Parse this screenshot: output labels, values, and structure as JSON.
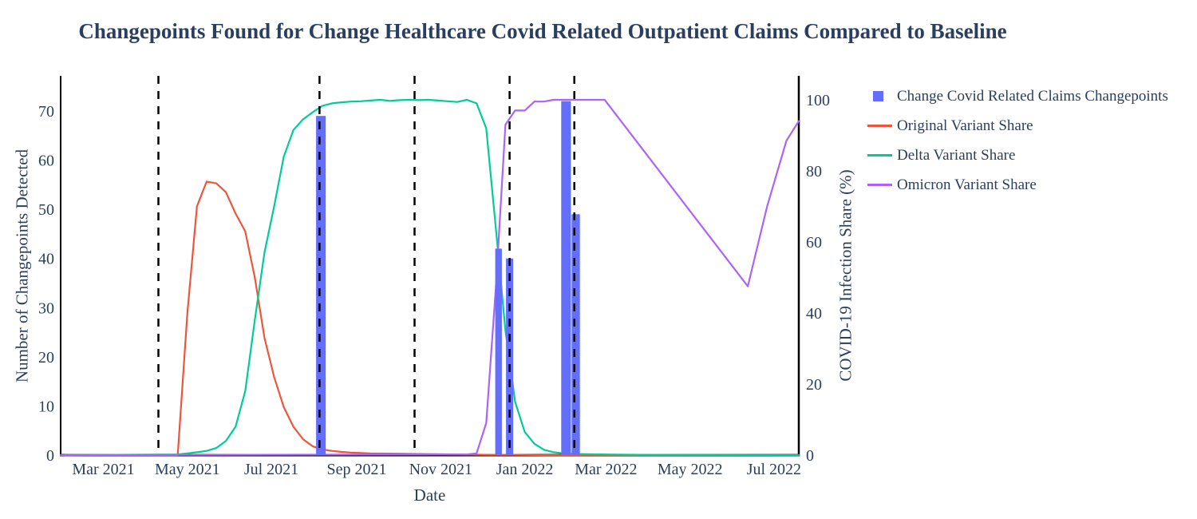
{
  "chart_data": {
    "type": "bar+line",
    "title": "Changepoints Found for Change Healthcare Covid Related Outpatient Claims Compared to Baseline",
    "xlabel": "Date",
    "ylabel_left": "Number of Changepoints Detected",
    "ylabel_right": "COVID-19 Infection Share (%)",
    "text_color": "#2a3f5f",
    "axis_color": "#000000",
    "background_color": "#ffffff",
    "grid": false,
    "legend_position": "right",
    "x_range": [
      "2021-01-29",
      "2022-07-19"
    ],
    "ylim_left": [
      0,
      77
    ],
    "ylim_right": [
      0,
      107
    ],
    "y_ticks_left": [
      0,
      10,
      20,
      30,
      40,
      50,
      60,
      70
    ],
    "y_ticks_right": [
      0,
      20,
      40,
      60,
      80,
      100
    ],
    "x_ticks": [
      {
        "label": "Mar 2021",
        "date": "2021-03-01"
      },
      {
        "label": "May 2021",
        "date": "2021-05-01"
      },
      {
        "label": "Jul 2021",
        "date": "2021-07-01"
      },
      {
        "label": "Sep 2021",
        "date": "2021-09-01"
      },
      {
        "label": "Nov 2021",
        "date": "2021-11-01"
      },
      {
        "label": "Jan 2022",
        "date": "2022-01-01"
      },
      {
        "label": "Mar 2022",
        "date": "2022-03-01"
      },
      {
        "label": "May 2022",
        "date": "2022-05-01"
      },
      {
        "label": "Jul 2022",
        "date": "2022-07-01"
      }
    ],
    "changepoint_vlines": {
      "color": "#000000",
      "style": "dashed",
      "dates": [
        "2021-04-10",
        "2021-08-05",
        "2021-10-13",
        "2021-12-21",
        "2022-02-06"
      ]
    },
    "bars": {
      "name": "Change Covid Related Claims Changepoints",
      "color": "#636EFA",
      "axis": "left",
      "points": [
        {
          "date": "2021-08-06",
          "value": 69,
          "width_days": 7
        },
        {
          "date": "2021-12-13",
          "value": 42,
          "width_days": 4.8
        },
        {
          "date": "2021-12-21",
          "value": 40,
          "width_days": 5.2
        },
        {
          "date": "2022-01-31",
          "value": 72,
          "width_days": 7
        },
        {
          "date": "2022-02-07",
          "value": 49,
          "width_days": 6
        }
      ]
    },
    "series": [
      {
        "name": "Original Variant Share",
        "color": "#EF553B",
        "axis": "right",
        "points": [
          [
            "2021-02-01",
            0
          ],
          [
            "2021-04-17",
            0
          ],
          [
            "2021-04-24",
            0
          ],
          [
            "2021-05-01",
            40
          ],
          [
            "2021-05-08",
            70
          ],
          [
            "2021-05-15",
            77
          ],
          [
            "2021-05-22",
            76.5
          ],
          [
            "2021-05-29",
            74
          ],
          [
            "2021-06-05",
            68
          ],
          [
            "2021-06-12",
            63
          ],
          [
            "2021-06-19",
            50
          ],
          [
            "2021-06-26",
            33
          ],
          [
            "2021-07-03",
            22
          ],
          [
            "2021-07-10",
            13.5
          ],
          [
            "2021-07-17",
            8
          ],
          [
            "2021-07-24",
            4.5
          ],
          [
            "2021-07-31",
            2.5
          ],
          [
            "2021-08-07",
            1.6
          ],
          [
            "2021-08-14",
            1.2
          ],
          [
            "2021-08-21",
            0.9
          ],
          [
            "2021-08-28",
            0.7
          ],
          [
            "2021-09-11",
            0.5
          ],
          [
            "2021-10-02",
            0.4
          ],
          [
            "2021-10-23",
            0.3
          ],
          [
            "2021-11-13",
            0.2
          ],
          [
            "2021-12-04",
            0.1
          ],
          [
            "2021-12-25",
            0.1
          ],
          [
            "2022-01-15",
            0
          ],
          [
            "2022-07-19",
            0
          ]
        ]
      },
      {
        "name": "Delta Variant Share",
        "color": "#00CC96",
        "axis": "right",
        "points": [
          [
            "2021-02-01",
            0
          ],
          [
            "2021-04-24",
            0.2
          ],
          [
            "2021-05-01",
            0.5
          ],
          [
            "2021-05-08",
            0.8
          ],
          [
            "2021-05-15",
            1.2
          ],
          [
            "2021-05-22",
            2
          ],
          [
            "2021-05-29",
            4
          ],
          [
            "2021-06-05",
            8
          ],
          [
            "2021-06-12",
            18
          ],
          [
            "2021-06-19",
            38
          ],
          [
            "2021-06-26",
            57
          ],
          [
            "2021-07-03",
            70
          ],
          [
            "2021-07-10",
            84
          ],
          [
            "2021-07-17",
            91.5
          ],
          [
            "2021-07-24",
            94.5
          ],
          [
            "2021-07-31",
            96.5
          ],
          [
            "2021-08-07",
            98.3
          ],
          [
            "2021-08-14",
            99
          ],
          [
            "2021-08-21",
            99.3
          ],
          [
            "2021-08-28",
            99.5
          ],
          [
            "2021-09-04",
            99.6
          ],
          [
            "2021-09-11",
            99.8
          ],
          [
            "2021-09-18",
            100
          ],
          [
            "2021-09-25",
            99.7
          ],
          [
            "2021-10-02",
            99.9
          ],
          [
            "2021-10-09",
            100
          ],
          [
            "2021-10-16",
            99.9
          ],
          [
            "2021-10-23",
            100
          ],
          [
            "2021-10-30",
            99.8
          ],
          [
            "2021-11-06",
            99.6
          ],
          [
            "2021-11-13",
            99.4
          ],
          [
            "2021-11-20",
            100
          ],
          [
            "2021-11-27",
            99
          ],
          [
            "2021-12-04",
            92
          ],
          [
            "2021-12-11",
            64
          ],
          [
            "2021-12-18",
            35
          ],
          [
            "2021-12-25",
            15
          ],
          [
            "2022-01-01",
            6.5
          ],
          [
            "2022-01-08",
            3.2
          ],
          [
            "2022-01-15",
            1.5
          ],
          [
            "2022-01-22",
            0.8
          ],
          [
            "2022-01-29",
            0.5
          ],
          [
            "2022-02-12",
            0.3
          ],
          [
            "2022-02-26",
            0.2
          ],
          [
            "2022-03-26",
            0.1
          ],
          [
            "2022-07-19",
            0
          ]
        ]
      },
      {
        "name": "Omicron Variant Share",
        "color": "#AB63FA",
        "axis": "right",
        "points": [
          [
            "2021-01-29",
            0
          ],
          [
            "2021-11-20",
            0.2
          ],
          [
            "2021-11-27",
            0.5
          ],
          [
            "2021-12-04",
            9
          ],
          [
            "2021-12-11",
            47
          ],
          [
            "2021-12-18",
            93
          ],
          [
            "2021-12-25",
            97
          ],
          [
            "2022-01-01",
            97
          ],
          [
            "2022-01-08",
            99.5
          ],
          [
            "2022-01-15",
            99.5
          ],
          [
            "2022-01-22",
            100
          ],
          [
            "2022-02-28",
            100
          ],
          [
            "2022-06-12",
            47.5
          ],
          [
            "2022-06-26",
            70
          ],
          [
            "2022-07-10",
            88.5
          ],
          [
            "2022-07-19",
            94
          ]
        ]
      }
    ],
    "legend": [
      {
        "label": "Change Covid Related Claims Changepoints",
        "marker": "square",
        "color": "#636EFA"
      },
      {
        "label": "Original Variant Share",
        "marker": "line",
        "color": "#EF553B"
      },
      {
        "label": "Delta Variant Share",
        "marker": "line",
        "color": "#00CC96"
      },
      {
        "label": "Omicron Variant Share",
        "marker": "line",
        "color": "#AB63FA"
      }
    ]
  }
}
